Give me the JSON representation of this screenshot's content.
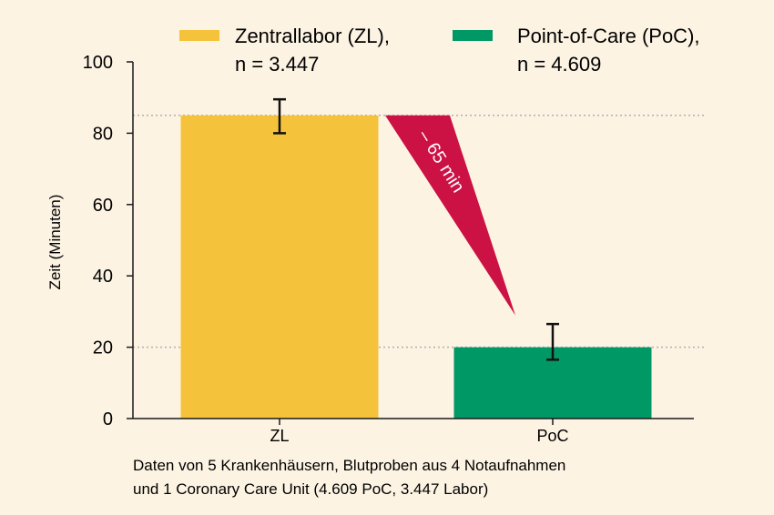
{
  "chart_data": {
    "type": "bar",
    "categories": [
      "ZL",
      "PoC"
    ],
    "values": [
      85,
      20
    ],
    "error_low": [
      80,
      16.5
    ],
    "error_high": [
      89.5,
      26.5
    ],
    "ylabel": "Zeit (Minuten)",
    "ylim": [
      0,
      100
    ],
    "yticks": [
      "0",
      "20",
      "40",
      "60",
      "80",
      "100"
    ],
    "colors": [
      "#f5c33b",
      "#009966"
    ],
    "legend": [
      {
        "line1": "Zentrallabor (ZL),",
        "line2": "n = 3.447",
        "color": "#f5c33b"
      },
      {
        "line1": "Point-of-Care (PoC),",
        "line2": "n = 4.609",
        "color": "#009966"
      }
    ],
    "legend_position": "top",
    "annotation": {
      "text": "– 65 min",
      "color": "#cc1144"
    },
    "footnote": {
      "line1": "Daten von 5 Krankenhäusern, Blutproben aus 4 Notaufnahmen",
      "line2": "und 1 Coronary Care Unit (4.609 PoC, 3.447 Labor)"
    },
    "grid": false,
    "reference_lines": [
      85,
      20
    ]
  }
}
